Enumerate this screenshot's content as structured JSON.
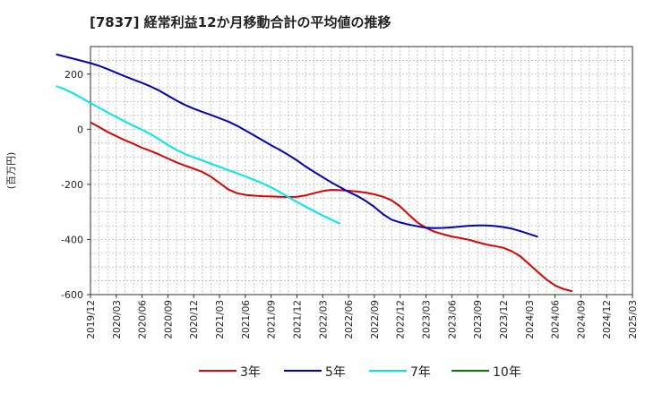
{
  "chart_data": {
    "type": "line",
    "title": "[7837]  経常利益12か月移動合計の平均値の推移",
    "ylabel": "(百万円)",
    "xlabel": "",
    "ylim": [
      -600,
      300
    ],
    "yticks": [
      200,
      0,
      -200,
      -400,
      -600
    ],
    "x_categories": [
      "2019/12",
      "2020/03",
      "2020/06",
      "2020/09",
      "2020/12",
      "2021/03",
      "2021/06",
      "2021/09",
      "2021/12",
      "2022/03",
      "2022/06",
      "2022/09",
      "2022/12",
      "2023/03",
      "2023/06",
      "2023/09",
      "2023/12",
      "2024/03",
      "2024/06",
      "2024/09",
      "2024/12",
      "2025/03"
    ],
    "grid": true,
    "legend_position": "bottom",
    "series": [
      {
        "name": "3年",
        "color": "#e00000",
        "start": "2019/12",
        "values": [
          25,
          8,
          -10,
          -25,
          -40,
          -53,
          -67,
          -79,
          -92,
          -106,
          -120,
          -132,
          -143,
          -155,
          -172,
          -195,
          -218,
          -232,
          -238,
          -241,
          -243,
          -244,
          -245,
          -246,
          -245,
          -240,
          -232,
          -224,
          -220,
          -221,
          -223,
          -226,
          -230,
          -236,
          -245,
          -258,
          -280,
          -310,
          -338,
          -358,
          -372,
          -381,
          -389,
          -395,
          -401,
          -410,
          -418,
          -424,
          -430,
          -443,
          -462,
          -490,
          -518,
          -545,
          -567,
          -580,
          -588
        ]
      },
      {
        "name": "5年",
        "color": "#0000c0",
        "start": "2020/02",
        "values": [
          272,
          264,
          256,
          248,
          240,
          230,
          218,
          205,
          192,
          180,
          168,
          155,
          140,
          122,
          104,
          88,
          75,
          63,
          52,
          40,
          28,
          13,
          -4,
          -22,
          -40,
          -58,
          -75,
          -93,
          -113,
          -135,
          -155,
          -174,
          -193,
          -210,
          -227,
          -242,
          -260,
          -282,
          -308,
          -328,
          -338,
          -346,
          -352,
          -357,
          -359,
          -358,
          -356,
          -353,
          -350,
          -349,
          -349,
          -351,
          -355,
          -361,
          -370,
          -380,
          -390
        ]
      },
      {
        "name": "7年",
        "color": "#00e8e8",
        "start": "2022/02",
        "values": [
          157,
          145,
          130,
          113,
          95,
          78,
          61,
          45,
          28,
          13,
          -2,
          -18,
          -37,
          -57,
          -75,
          -90,
          -102,
          -113,
          -125,
          -136,
          -148,
          -159,
          -171,
          -183,
          -196,
          -211,
          -228,
          -246,
          -264,
          -281,
          -297,
          -313,
          -328,
          -343
        ]
      },
      {
        "name": "10年",
        "color": "#008000",
        "start": "2019/12",
        "values": []
      }
    ]
  }
}
